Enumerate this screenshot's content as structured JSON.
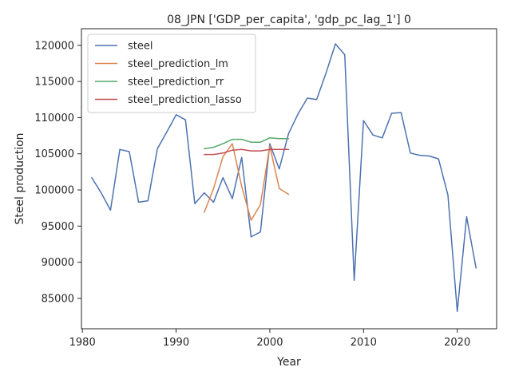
{
  "chart_data": {
    "type": "line",
    "title": "08_JPN ['GDP_per_capita', 'gdp_pc_lag_1'] 0",
    "xlabel": "Year",
    "ylabel": "Steel production",
    "xlim": [
      1979.9,
      2024.2
    ],
    "ylim": [
      80800,
      122300
    ],
    "x_ticks": [
      1980,
      1990,
      2000,
      2010,
      2020
    ],
    "y_ticks": [
      85000,
      90000,
      95000,
      100000,
      105000,
      110000,
      115000,
      120000
    ],
    "grid": false,
    "legend_position": "upper left",
    "series": [
      {
        "name": "steel",
        "color": "#4c72b0",
        "x": [
          1981,
          1982,
          1983,
          1984,
          1985,
          1986,
          1987,
          1988,
          1989,
          1990,
          1991,
          1992,
          1993,
          1994,
          1995,
          1996,
          1997,
          1998,
          1999,
          2000,
          2001,
          2002,
          2003,
          2004,
          2005,
          2006,
          2007,
          2008,
          2009,
          2010,
          2011,
          2012,
          2013,
          2014,
          2015,
          2016,
          2017,
          2018,
          2019,
          2020,
          2021,
          2022
        ],
        "y": [
          101700,
          99600,
          97200,
          105600,
          105300,
          98300,
          98500,
          105700,
          108000,
          110400,
          109700,
          98100,
          99600,
          98300,
          101700,
          98800,
          104500,
          93500,
          94200,
          106400,
          102900,
          107800,
          110500,
          112700,
          112500,
          116200,
          120200,
          118700,
          87500,
          109600,
          107600,
          107200,
          110600,
          110700,
          105100,
          104800,
          104700,
          104300,
          99300,
          83200,
          96300,
          89200
        ]
      },
      {
        "name": "steel_prediction_lm",
        "color": "#dd8452",
        "x": [
          1993,
          1994,
          1995,
          1996,
          1997,
          1998,
          1999,
          2000,
          2001,
          2002
        ],
        "y": [
          96900,
          100200,
          104600,
          106400,
          100500,
          95800,
          98000,
          106100,
          100200,
          99400
        ]
      },
      {
        "name": "steel_prediction_rr",
        "color": "#55a868",
        "x": [
          1993,
          1994,
          1995,
          1996,
          1997,
          1998,
          1999,
          2000,
          2001,
          2002
        ],
        "y": [
          105700,
          105900,
          106400,
          107000,
          107000,
          106600,
          106600,
          107200,
          107100,
          107100
        ]
      },
      {
        "name": "steel_prediction_lasso",
        "color": "#c44e52",
        "x": [
          1993,
          1994,
          1995,
          1996,
          1997,
          1998,
          1999,
          2000,
          2001,
          2002
        ],
        "y": [
          104900,
          104900,
          105100,
          105500,
          105600,
          105400,
          105400,
          105600,
          105600,
          105600
        ]
      }
    ]
  }
}
